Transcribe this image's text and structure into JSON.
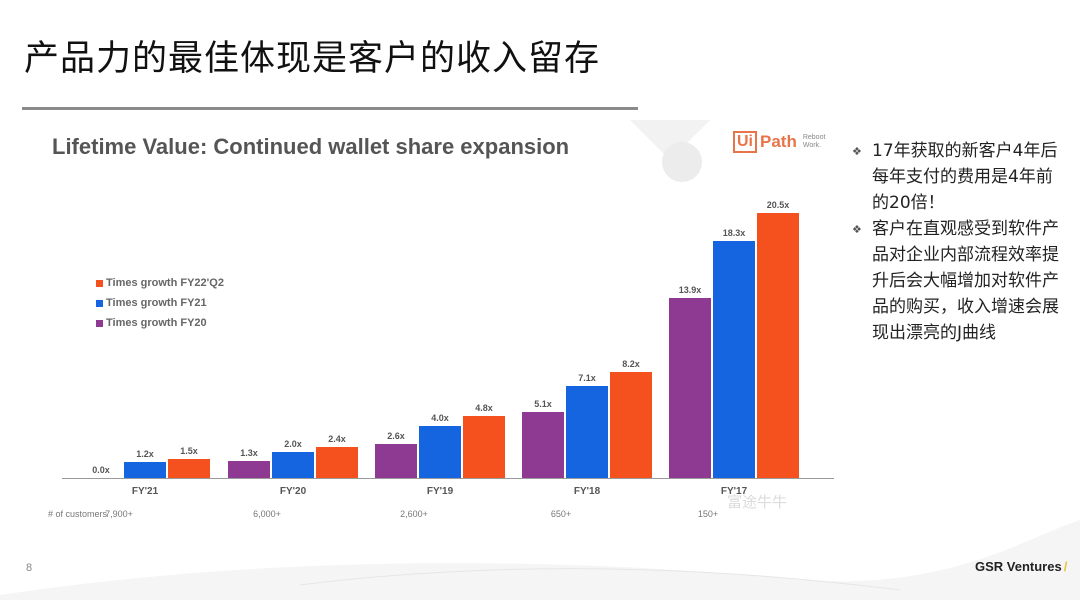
{
  "page": {
    "title": "产品力的最佳体现是客户的收入留存",
    "page_number": "8",
    "brand": "GSR Ventures",
    "brand_slash": "/"
  },
  "slide": {
    "title": "Lifetime Value: Continued wallet share expansion",
    "logo": {
      "box": "Ui",
      "text": "Path",
      "tagline_line1": "Reboot",
      "tagline_line2": "Work."
    },
    "watermark": "富途牛牛",
    "customers_header": "# of customers"
  },
  "side_notes": [
    {
      "icon": "diamond-bullet",
      "text": "17年获取的新客户4年后每年支付的费用是4年前的20倍！"
    },
    {
      "icon": "diamond-bullet",
      "text": "客户在直观感受到软件产品对企业内部流程效率提升后会大幅增加对软件产品的购买，收入增速会展现出漂亮的J曲线"
    }
  ],
  "legend": [
    {
      "label": "Times growth FY22'Q2",
      "color": "#f4511e"
    },
    {
      "label": "Times growth FY21",
      "color": "#1565e0"
    },
    {
      "label": "Times growth FY20",
      "color": "#8e3a92"
    }
  ],
  "chart_data": {
    "type": "bar",
    "title": "Lifetime Value: Continued wallet share expansion",
    "xlabel": "",
    "ylabel": "",
    "categories": [
      "FY'21",
      "FY'20",
      "FY'19",
      "FY'18",
      "FY'17"
    ],
    "customers": [
      "7,900+",
      "6,000+",
      "2,600+",
      "650+",
      "150+"
    ],
    "series": [
      {
        "name": "Times growth FY20",
        "color": "#8e3a92",
        "values": [
          0.0,
          1.3,
          2.6,
          5.1,
          13.9
        ],
        "labels": [
          "0.0x",
          "1.3x",
          "2.6x",
          "5.1x",
          "13.9x"
        ]
      },
      {
        "name": "Times growth FY21",
        "color": "#1565e0",
        "values": [
          1.2,
          2.0,
          4.0,
          7.1,
          18.3
        ],
        "labels": [
          "1.2x",
          "2.0x",
          "4.0x",
          "7.1x",
          "18.3x"
        ]
      },
      {
        "name": "Times growth FY22'Q2",
        "color": "#f4511e",
        "values": [
          1.5,
          2.4,
          4.8,
          8.2,
          20.5
        ],
        "labels": [
          "1.5x",
          "2.4x",
          "4.8x",
          "8.2x",
          "20.5x"
        ]
      }
    ],
    "ylim": [
      0,
      21
    ],
    "grid": false,
    "legend_position": "upper-left"
  }
}
